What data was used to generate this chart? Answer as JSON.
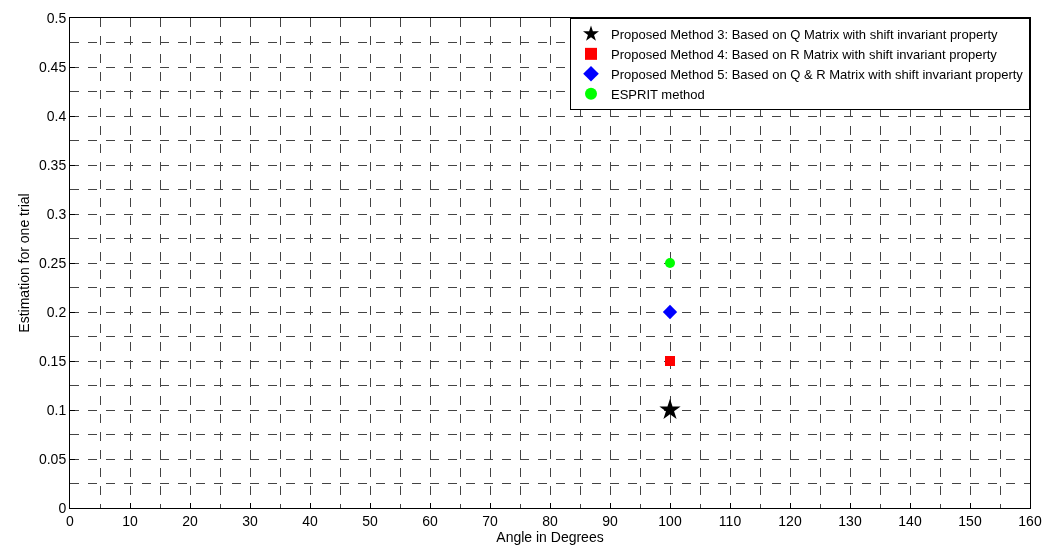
{
  "chart_data": {
    "type": "scatter",
    "xlabel": "Angle in Degrees",
    "ylabel": "Estimation for one trial",
    "xlim": [
      0,
      160
    ],
    "xticks": [
      0,
      10,
      20,
      30,
      40,
      50,
      60,
      70,
      80,
      90,
      100,
      110,
      120,
      130,
      140,
      150,
      160
    ],
    "ylim": [
      0,
      0.5
    ],
    "yticks": [
      0,
      0.05,
      0.1,
      0.15,
      0.2,
      0.25,
      0.3,
      0.35,
      0.4,
      0.45,
      0.5
    ],
    "grid": true,
    "legend": "top right",
    "x": [
      100
    ],
    "series": [
      {
        "name": "Proposed Method 3: Based on Q Matrix with shift invariant property",
        "color": "#000000",
        "marker": "star",
        "values": [
          0.1
        ]
      },
      {
        "name": "Proposed Method 4: Based on R Matrix with shift invariant property",
        "color": "#ff0000",
        "marker": "square",
        "values": [
          0.15
        ]
      },
      {
        "name": "Proposed Method 5: Based on Q & R Matrix with shift invariant property",
        "color": "#0000ff",
        "marker": "diamond",
        "values": [
          0.2
        ]
      },
      {
        "name": "ESPRIT method",
        "color": "#00ff00",
        "marker": "circle",
        "values": [
          0.25
        ]
      }
    ]
  }
}
